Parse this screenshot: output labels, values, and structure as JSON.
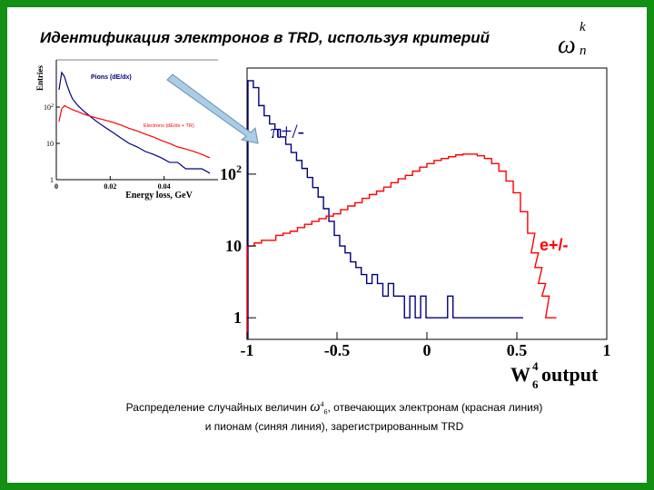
{
  "slide": {
    "title": "Идентификация электронов в TRD, используя критерий",
    "criterion_symbol": "ω",
    "criterion_sup": "k",
    "criterion_sub": "n",
    "caption_line1_a": "Распределение случайных величин",
    "caption_symbol": "ω",
    "caption_sup": "4",
    "caption_sub": "6",
    "caption_line1_b": ", отвечающих электронам (красная линия)",
    "caption_line2": "и пионам (синяя линия), зарегистрированным TRD"
  },
  "colors": {
    "frame": "#138f13",
    "pion": "#000080",
    "electron": "#ff0000",
    "arrow_fill": "#aacde6",
    "arrow_stroke": "#6a8fb0"
  },
  "chart_data": [
    {
      "type": "line",
      "scale_y": "log",
      "xlim": [
        -1,
        1
      ],
      "ylim": [
        0.5,
        3000
      ],
      "x_ticks": [
        "-1",
        "-0.5",
        "0",
        "0.5",
        "1"
      ],
      "y_ticks": [
        "1",
        "10",
        "10"
      ],
      "y_tick_values": [
        1,
        10,
        100
      ],
      "y_tick_sup": [
        "",
        "",
        "2"
      ],
      "xlabel_main": "W",
      "xlabel_sup": "4",
      "xlabel_sub": "6",
      "xlabel_tail": " output",
      "series": [
        {
          "name": "π+/-",
          "color": "#000080",
          "x": [
            -0.98,
            -0.95,
            -0.92,
            -0.89,
            -0.86,
            -0.83,
            -0.8,
            -0.77,
            -0.74,
            -0.71,
            -0.68,
            -0.65,
            -0.62,
            -0.59,
            -0.56,
            -0.53,
            -0.5,
            -0.47,
            -0.44,
            -0.41,
            -0.38,
            -0.35,
            -0.32,
            -0.29,
            -0.26,
            -0.23,
            -0.2,
            -0.17,
            -0.14,
            -0.11,
            -0.08,
            -0.05,
            -0.02,
            0.01,
            0.04,
            0.07,
            0.1,
            0.13,
            0.16,
            0.19,
            0.22,
            0.25,
            0.28,
            0.31,
            0.34,
            0.37,
            0.4,
            0.43,
            0.46,
            0.49,
            0.52
          ],
          "values": [
            2000,
            1600,
            900,
            650,
            500,
            420,
            330,
            260,
            200,
            155,
            120,
            90,
            65,
            48,
            33,
            22,
            14,
            10,
            8,
            6,
            5,
            4,
            3,
            4,
            3,
            2,
            3,
            2,
            2,
            1,
            2,
            1,
            2,
            1,
            1,
            1,
            1,
            2,
            1,
            1,
            1,
            1,
            1,
            1,
            1,
            1,
            1,
            1,
            1,
            1,
            1
          ]
        },
        {
          "name": "e+/-",
          "color": "#ff0000",
          "x": [
            -0.98,
            -0.94,
            -0.9,
            -0.86,
            -0.82,
            -0.78,
            -0.74,
            -0.7,
            -0.66,
            -0.62,
            -0.58,
            -0.54,
            -0.5,
            -0.46,
            -0.42,
            -0.38,
            -0.34,
            -0.3,
            -0.26,
            -0.22,
            -0.18,
            -0.14,
            -0.1,
            -0.06,
            -0.02,
            0.02,
            0.06,
            0.1,
            0.14,
            0.18,
            0.22,
            0.26,
            0.3,
            0.34,
            0.38,
            0.42,
            0.46,
            0.5,
            0.54,
            0.58,
            0.6,
            0.62,
            0.64,
            0.66,
            0.68,
            0.7
          ],
          "values": [
            10,
            11,
            12,
            12,
            14,
            15,
            16,
            18,
            20,
            22,
            24,
            26,
            28,
            32,
            36,
            40,
            46,
            52,
            58,
            66,
            76,
            86,
            96,
            110,
            125,
            140,
            155,
            165,
            175,
            185,
            190,
            190,
            180,
            165,
            140,
            110,
            80,
            55,
            30,
            15,
            8,
            5,
            3,
            2,
            1,
            1
          ]
        }
      ],
      "annotations": [
        {
          "name": "pion-label",
          "text": "π+/-",
          "x": -0.85,
          "y": 300
        },
        {
          "name": "electron-label",
          "text": "e+/-",
          "x": 0.72,
          "y": 12
        }
      ]
    },
    {
      "type": "line",
      "scale_y": "log",
      "xlim": [
        0,
        0.06
      ],
      "ylim": [
        1,
        2000
      ],
      "x_ticks": [
        "0",
        "0.02",
        "0.04"
      ],
      "y_ticks": [
        "1",
        "10",
        "10"
      ],
      "y_tick_values": [
        1,
        10,
        100
      ],
      "y_tick_sup": [
        "",
        "",
        "2"
      ],
      "xlabel": "Energy loss, GeV",
      "ylabel": "Entries",
      "series": [
        {
          "name": "Pions (dE/dx)",
          "color": "#000080",
          "x": [
            0.001,
            0.002,
            0.003,
            0.004,
            0.005,
            0.006,
            0.008,
            0.01,
            0.012,
            0.015,
            0.018,
            0.021,
            0.024,
            0.027,
            0.03,
            0.033,
            0.036,
            0.039,
            0.042,
            0.045,
            0.048,
            0.051,
            0.054,
            0.057
          ],
          "values": [
            300,
            900,
            700,
            400,
            250,
            170,
            110,
            80,
            60,
            40,
            28,
            20,
            14,
            10,
            8,
            6,
            5,
            4,
            3,
            3,
            2,
            2,
            2,
            1.5
          ]
        },
        {
          "name": "Electrons (dE/dx + TR)",
          "color": "#ff0000",
          "x": [
            0.001,
            0.002,
            0.003,
            0.004,
            0.006,
            0.008,
            0.01,
            0.012,
            0.015,
            0.018,
            0.021,
            0.024,
            0.027,
            0.03,
            0.033,
            0.036,
            0.039,
            0.042,
            0.045,
            0.048,
            0.051,
            0.054,
            0.057
          ],
          "values": [
            40,
            90,
            110,
            100,
            85,
            75,
            65,
            58,
            50,
            44,
            38,
            32,
            26,
            22,
            18,
            15,
            12,
            10,
            8,
            7,
            6,
            5,
            4
          ]
        }
      ]
    }
  ]
}
